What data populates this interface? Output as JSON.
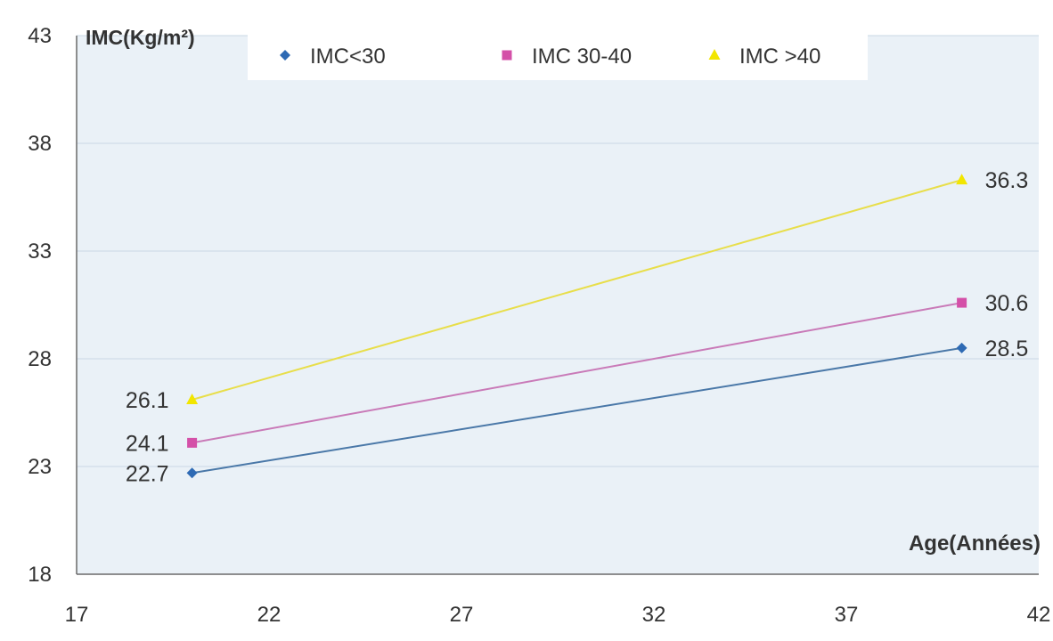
{
  "chart_data": {
    "type": "line",
    "title": "",
    "xlabel": "Age(Années)",
    "ylabel": "IMC(Kg/m²)",
    "xlim": [
      17,
      42
    ],
    "ylim": [
      18,
      43
    ],
    "x_ticks": [
      "17",
      "22",
      "27",
      "32",
      "37",
      "42"
    ],
    "y_ticks": [
      "18",
      "23",
      "28",
      "33",
      "38",
      "43"
    ],
    "grid": "horizontal",
    "legend_position": "top",
    "series": [
      {
        "name": "IMC<30",
        "color": "#2e6ab4",
        "line_color": "#4a78a8",
        "marker": "diamond",
        "x": [
          20,
          40
        ],
        "y": [
          22.7,
          28.5
        ],
        "labels": [
          "22.7",
          "28.5"
        ]
      },
      {
        "name": "IMC 30-40",
        "color": "#d450a8",
        "line_color": "#c97ab8",
        "marker": "square",
        "x": [
          20,
          40
        ],
        "y": [
          24.1,
          30.6
        ],
        "labels": [
          "24.1",
          "30.6"
        ]
      },
      {
        "name": "IMC >40",
        "color": "#f2e600",
        "line_color": "#e8de4a",
        "marker": "triangle",
        "x": [
          20,
          40
        ],
        "y": [
          26.1,
          36.3
        ],
        "labels": [
          "26.1",
          "36.3"
        ]
      }
    ]
  },
  "colors": {
    "plot_background": "#eaf1f7",
    "gridline": "#c9d8e6",
    "axis": "#6a6a6a",
    "text": "#333333"
  }
}
